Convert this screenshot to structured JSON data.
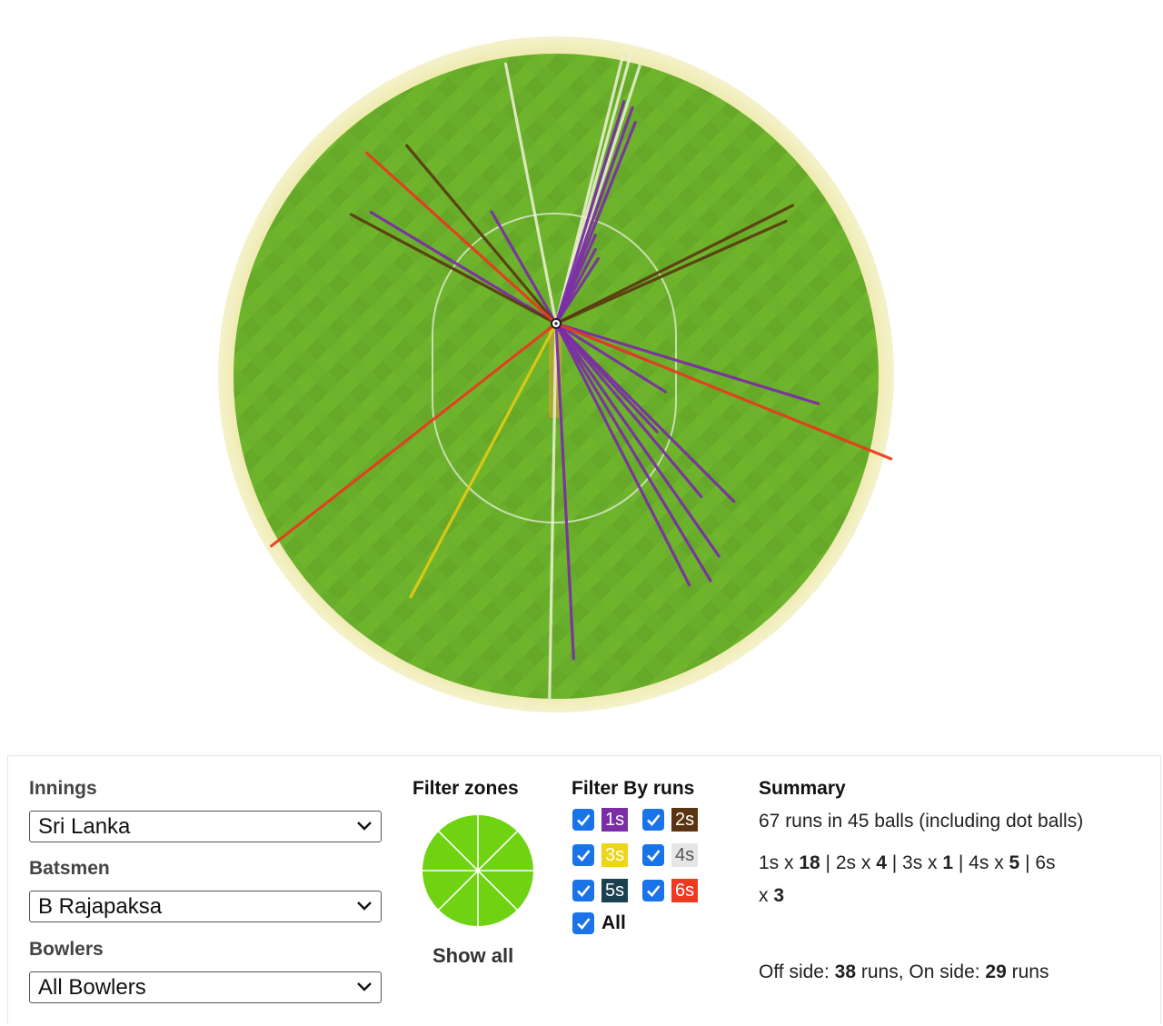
{
  "wagon_wheel": {
    "colors": {
      "field": "#6fb52c",
      "field_dark": "#64a828",
      "border": "#ece8a4",
      "circle_line": "#d9e8c4"
    },
    "shots": [
      {
        "runs": 1,
        "bearing": 17.0,
        "reach": 0.72
      },
      {
        "runs": 1,
        "bearing": 19.5,
        "reach": 0.71
      },
      {
        "runs": 1,
        "bearing": 21.5,
        "reach": 0.67
      },
      {
        "runs": 1,
        "bearing": 24.0,
        "reach": 0.3
      },
      {
        "runs": 1,
        "bearing": 28.0,
        "reach": 0.26
      },
      {
        "runs": 1,
        "bearing": 33.0,
        "reach": 0.24
      },
      {
        "runs": 1,
        "bearing": -30.0,
        "reach": 0.4
      },
      {
        "runs": 1,
        "bearing": -59.0,
        "reach": 0.67
      },
      {
        "runs": 1,
        "bearing": 107.0,
        "reach": 0.85
      },
      {
        "runs": 1,
        "bearing": 137.0,
        "reach": 0.46
      },
      {
        "runs": 1,
        "bearing": 140.0,
        "reach": 0.7
      },
      {
        "runs": 1,
        "bearing": 135.0,
        "reach": 0.78
      },
      {
        "runs": 1,
        "bearing": 145.0,
        "reach": 0.88
      },
      {
        "runs": 1,
        "bearing": 149.0,
        "reach": 0.93
      },
      {
        "runs": 1,
        "bearing": 153.0,
        "reach": 0.91
      },
      {
        "runs": 1,
        "bearing": 177.0,
        "reach": 1.04
      },
      {
        "runs": 1,
        "bearing": 112.0,
        "reach": 0.3
      },
      {
        "runs": 1,
        "bearing": 122.0,
        "reach": 0.4
      },
      {
        "runs": 2,
        "bearing": -40.0,
        "reach": 0.72
      },
      {
        "runs": 2,
        "bearing": -62.0,
        "reach": 0.72
      },
      {
        "runs": 2,
        "bearing": 63.5,
        "reach": 0.82
      },
      {
        "runs": 2,
        "bearing": 66.0,
        "reach": 0.78
      },
      {
        "runs": 3,
        "bearing": -152.0,
        "reach": 0.96
      },
      {
        "runs": 4,
        "bearing": -11.0,
        "reach": 0.82
      },
      {
        "runs": 4,
        "bearing": 14.0,
        "reach": 0.85
      },
      {
        "runs": 4,
        "bearing": 15.5,
        "reach": 0.87
      },
      {
        "runs": 4,
        "bearing": 18.0,
        "reach": 0.84
      },
      {
        "runs": 4,
        "bearing": -179.0,
        "reach": 1.16
      },
      {
        "runs": 6,
        "bearing": -48.0,
        "reach": 0.79
      },
      {
        "runs": 6,
        "bearing": 112.0,
        "reach": 1.12
      },
      {
        "runs": 6,
        "bearing": -128.0,
        "reach": 1.12
      }
    ]
  },
  "run_colors": {
    "1": "#7b2da6",
    "2": "#5a3a10",
    "3": "#e0cc12",
    "4": "#eef2d6",
    "5": "#1b4052",
    "6": "#e83a1e"
  },
  "innings": {
    "label": "Innings",
    "selected": "Sri Lanka"
  },
  "batsmen": {
    "label": "Batsmen",
    "selected": "B Rajapaksa"
  },
  "bowlers": {
    "label": "Bowlers",
    "selected": "All Bowlers"
  },
  "filter_zones": {
    "title": "Filter zones",
    "show_all": "Show all",
    "zone_color": "#6fd312"
  },
  "filter_runs": {
    "title": "Filter By runs",
    "badges": [
      {
        "label": "1s",
        "bg": "#7b2da6",
        "fg": "#ffffff",
        "checked": true
      },
      {
        "label": "2s",
        "bg": "#5a3412",
        "fg": "#ffffff",
        "checked": true
      },
      {
        "label": "3s",
        "bg": "#ecd61a",
        "fg": "#ffffff",
        "checked": true
      },
      {
        "label": "4s",
        "bg": "#e6e6e6",
        "fg": "#555555",
        "checked": true
      },
      {
        "label": "5s",
        "bg": "#1b4052",
        "fg": "#ffffff",
        "checked": true
      },
      {
        "label": "6s",
        "bg": "#ee3a22",
        "fg": "#ffffff",
        "checked": true
      }
    ],
    "all_label": "All",
    "all_checked": true
  },
  "summary": {
    "title": "Summary",
    "line1": "67 runs in 45 balls (including dot balls)",
    "s1_label": "1s x ",
    "s1": "18",
    "s2_label": " | 2s x ",
    "s2": "4",
    "s3_label": " | 3s x ",
    "s3": "1",
    "s4_label": " | 4s x ",
    "s4": "5",
    "s6_label": " | 6s",
    "s6_x": "x ",
    "s6": "3",
    "off_label": "Off side: ",
    "off_runs": "38",
    "runs_word": " runs",
    "on_label": ", On side: ",
    "on_runs": "29",
    "runs_word2": " runs"
  }
}
